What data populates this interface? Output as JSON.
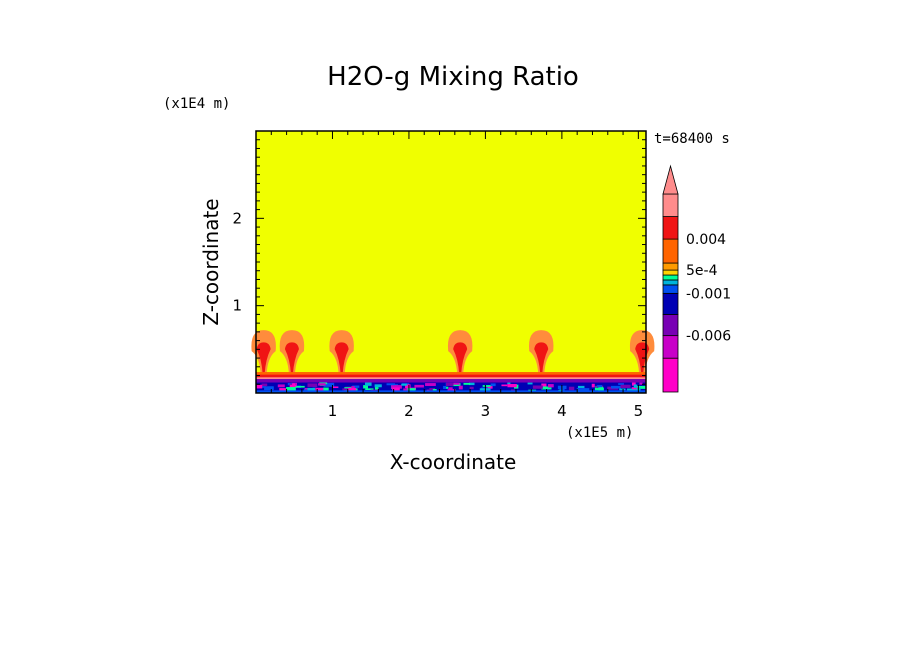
{
  "chart_data": {
    "type": "heatmap",
    "title": "H2O-g Mixing Ratio",
    "xlabel": "X-coordinate",
    "ylabel": "Z-coordinate",
    "x_scale_label": "(x1E5 m)",
    "y_scale_label": "(x1E4 m)",
    "time_label": "t=68400 s",
    "xlim": [
      0,
      5.1
    ],
    "ylim": [
      0,
      3.0
    ],
    "x_ticks": [
      1,
      2,
      3,
      4,
      5
    ],
    "x_tick_labels": [
      "1",
      "2",
      "3",
      "4",
      "5"
    ],
    "y_ticks": [
      1,
      2
    ],
    "y_tick_labels": [
      "1",
      "2"
    ],
    "background_value_color": "#f0ff00",
    "plumes_x": [
      0.1,
      0.47,
      1.12,
      2.67,
      3.73,
      5.05
    ],
    "colorbar": {
      "levels": [
        {
          "color": "#ff00c8"
        },
        {
          "color": "#c800c8"
        },
        {
          "color": "#7800b4"
        },
        {
          "color": "#0000b4"
        },
        {
          "color": "#0050f0"
        },
        {
          "color": "#00b4dc"
        },
        {
          "color": "#00ff96"
        },
        {
          "color": "#ffd200"
        },
        {
          "color": "#ff9b00"
        },
        {
          "color": "#ff6400"
        },
        {
          "color": "#f01414"
        },
        {
          "color": "#ff8c8c"
        }
      ],
      "tick_labels": [
        {
          "label": "0.004",
          "value": 0.004
        },
        {
          "label": "5e-4",
          "value": 0.0005
        },
        {
          "label": "-0.001",
          "value": -0.001
        },
        {
          "label": "-0.006",
          "value": -0.006
        }
      ]
    }
  }
}
